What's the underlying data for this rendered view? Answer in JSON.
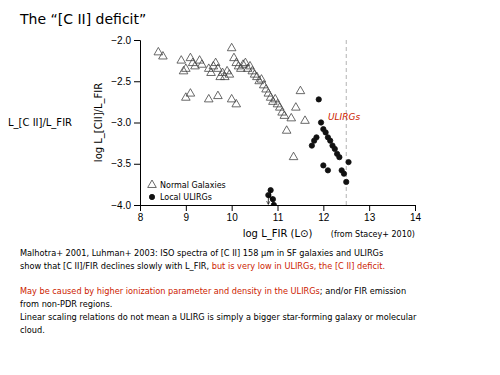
{
  "chart_data": {
    "type": "scatter",
    "title": "The “[C II] deficit”",
    "xlabel": "log L_FIR (L⊙)",
    "ylabel": "log L_[CII]/L_FIR",
    "ylabel_outside": "L_[C II]/L_FIR",
    "xlim": [
      8,
      14
    ],
    "ylim": [
      -4.0,
      -2.0
    ],
    "xticks": [
      8,
      9,
      10,
      11,
      12,
      13,
      14
    ],
    "yticks": [
      {
        "value": -4.0,
        "label": "−4.0"
      },
      {
        "value": -3.5,
        "label": "−3.5"
      },
      {
        "value": -3.0,
        "label": "−3.0"
      },
      {
        "value": -2.5,
        "label": "−2.5"
      },
      {
        "value": -2.0,
        "label": "−2.0"
      }
    ],
    "grid": false,
    "legend": "lower left",
    "series": [
      {
        "name": "Normal Galaxies",
        "color": "#444444",
        "marker": "triangle-open",
        "x": [
          8.4,
          8.5,
          8.9,
          8.95,
          9.0,
          9.1,
          9.15,
          9.2,
          9.3,
          9.35,
          9.5,
          9.55,
          9.6,
          9.65,
          9.7,
          9.75,
          9.8,
          9.85,
          9.9,
          9.95,
          10.0,
          10.05,
          10.1,
          10.15,
          10.2,
          10.25,
          10.3,
          10.35,
          10.4,
          10.45,
          10.5,
          10.55,
          10.6,
          10.65,
          10.7,
          10.75,
          10.8,
          10.85,
          10.9,
          10.95,
          11.0,
          11.05,
          11.1,
          11.15,
          11.2,
          11.3,
          11.35,
          11.4,
          11.5,
          11.6,
          9.0,
          9.1,
          9.5,
          9.7,
          10.0,
          10.1
        ],
        "values": [
          -2.15,
          -2.2,
          -2.25,
          -2.38,
          -2.35,
          -2.22,
          -2.28,
          -2.32,
          -2.25,
          -2.3,
          -2.35,
          -2.4,
          -2.32,
          -2.28,
          -2.35,
          -2.45,
          -2.4,
          -2.45,
          -2.38,
          -2.42,
          -2.1,
          -2.22,
          -2.28,
          -2.32,
          -2.35,
          -2.3,
          -2.28,
          -2.35,
          -2.32,
          -2.38,
          -2.42,
          -2.45,
          -2.5,
          -2.48,
          -2.55,
          -2.6,
          -2.65,
          -2.7,
          -2.75,
          -2.72,
          -2.78,
          -2.82,
          -2.88,
          -2.92,
          -3.1,
          -2.95,
          -3.42,
          -2.82,
          -2.62,
          -2.98,
          -2.7,
          -2.65,
          -2.72,
          -2.68,
          -2.72,
          -2.78
        ]
      },
      {
        "name": "Local ULIRGs",
        "color": "#111111",
        "marker": "circle",
        "x": [
          10.8,
          10.85,
          10.9,
          10.92,
          11.9,
          11.95,
          12.0,
          12.05,
          12.1,
          12.15,
          12.2,
          12.25,
          12.3,
          12.35,
          12.4,
          12.45,
          12.5,
          11.85,
          11.8,
          11.75,
          12.0,
          12.1,
          12.55
        ],
        "values": [
          -3.88,
          -3.82,
          -3.93,
          -4.0,
          -2.72,
          -3.0,
          -3.08,
          -3.12,
          -3.18,
          -3.22,
          -3.28,
          -3.32,
          -3.38,
          -3.42,
          -3.58,
          -3.62,
          -3.72,
          -3.18,
          -3.22,
          -3.28,
          -3.52,
          -3.58,
          -3.48
        ]
      }
    ],
    "upper_limits": {
      "x": [
        10.8,
        10.85,
        10.9,
        10.92
      ],
      "y": [
        -3.88,
        -3.82,
        -3.93,
        -4.0
      ]
    },
    "vline_x": 12.5,
    "annotations": [
      {
        "text": "ULIRGs",
        "x": 12.1,
        "y": -2.97,
        "color": "#cc2200"
      }
    ],
    "source": "(from Stacey+ 2010)",
    "notes": [
      [
        [
          {
            "text": "Malhotra+ 2001, Luhman+ 2003: ISO spectra of [C II] 158 μm in SF galaxies and ULIRGs"
          }
        ],
        [
          {
            "text": "show that [C II]/FIR declines slowly with L_FIR,"
          },
          {
            "text": " but is very low in ULIRGs, the [C II] deficit.",
            "color": "#cc2200"
          }
        ]
      ],
      [
        [
          {
            "text": "May be caused by higher ionization parameter and density in the ULIRGs",
            "color": "#cc2200"
          },
          {
            "text": "; and/or FIR emission"
          }
        ],
        [
          {
            "text": "from non-PDR regions."
          }
        ],
        [
          {
            "text": "Linear scaling relations do not mean a ULIRG is simply a bigger star-forming galaxy or molecular"
          }
        ],
        [
          {
            "text": "cloud."
          }
        ]
      ]
    ]
  }
}
